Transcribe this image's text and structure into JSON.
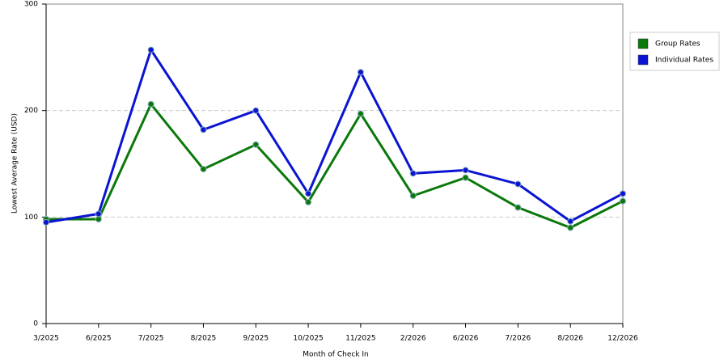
{
  "chart_data": {
    "type": "line",
    "x_label": "Month of Check In",
    "y_label": "Lowest Average Rate (USD)",
    "categories": [
      "3/2025",
      "6/2025",
      "7/2025",
      "8/2025",
      "9/2025",
      "10/2025",
      "11/2025",
      "2/2026",
      "6/2026",
      "7/2026",
      "8/2026",
      "12/2026"
    ],
    "series": [
      {
        "name": "Group Rates",
        "color": "#0a780a",
        "values": [
          98,
          98,
          206,
          145,
          168,
          114,
          197,
          120,
          137,
          109,
          90,
          115
        ]
      },
      {
        "name": "Individual Rates",
        "color": "#0a14d2",
        "values": [
          95,
          103,
          257,
          182,
          200,
          122,
          236,
          141,
          144,
          131,
          96,
          122
        ]
      }
    ],
    "ylim": [
      0,
      300
    ],
    "yticks": [
      0,
      100,
      200,
      300
    ],
    "grid": true,
    "legend": "right"
  }
}
